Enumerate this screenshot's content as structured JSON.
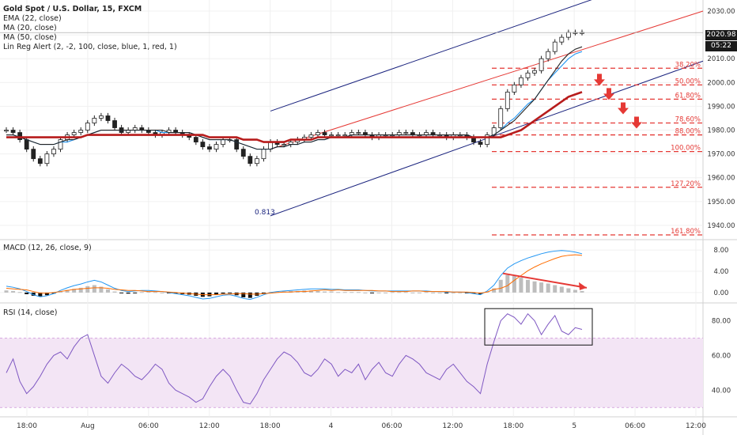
{
  "header": {
    "symbol_line": "Gold Spot / U.S. Dollar, 15, FXCM",
    "indicators": [
      "EMA (22, close)",
      "MA (20, close)",
      "MA (50, close)",
      "Lin Reg Alert (2, -2, 100, close, blue, 1, red, 1)"
    ]
  },
  "price_badge": {
    "price": "2020.98",
    "countdown": "05:22"
  },
  "panels": {
    "macd_title": "MACD (12, 26, close, 9)",
    "rsi_title": "RSI (14, close)"
  },
  "chart_data": [
    {
      "type": "line",
      "name": "price",
      "ylim": [
        1935,
        2032
      ],
      "y_ticks": [
        1940,
        1950,
        1960,
        1970,
        1980,
        1990,
        2000,
        2010,
        2020,
        2030
      ],
      "y_tick_labels": [
        "1940.00",
        "1950.00",
        "1960.00",
        "1970.00",
        "1980.00",
        "1990.00",
        "2000.00",
        "2010.00",
        "2020.00",
        "2030.00"
      ],
      "x_tick_labels": [
        "18:00",
        "Aug",
        "06:00",
        "12:00",
        "18:00",
        "4",
        "06:00",
        "12:00",
        "18:00",
        "5",
        "06:00",
        "12:00"
      ],
      "last_price": 2020.98,
      "regression_label": "0.813",
      "fib_levels": [
        {
          "label": "38.20%",
          "price": 2006
        },
        {
          "label": "50.00%",
          "price": 1999
        },
        {
          "label": "61.80%",
          "price": 1993
        },
        {
          "label": "78.60%",
          "price": 1983
        },
        {
          "label": "88.00%",
          "price": 1978
        },
        {
          "label": "100.00%",
          "price": 1971
        },
        {
          "label": "127.20%",
          "price": 1956
        },
        {
          "label": "161.80%",
          "price": 1936
        }
      ],
      "close_series": [
        1980,
        1979,
        1976,
        1972,
        1968,
        1966,
        1970,
        1972,
        1976,
        1978,
        1979,
        1980,
        1983,
        1985,
        1986,
        1984,
        1981,
        1979,
        1980,
        1981,
        1980,
        1979,
        1978,
        1979,
        1980,
        1979,
        1978,
        1977,
        1975,
        1973,
        1972,
        1974,
        1976,
        1976,
        1972,
        1969,
        1966,
        1968,
        1972,
        1975,
        1974,
        1974,
        1975,
        1976,
        1977,
        1978,
        1979,
        1978,
        1978,
        1978,
        1978,
        1979,
        1979,
        1978,
        1977,
        1978,
        1978,
        1978,
        1979,
        1979,
        1978,
        1978,
        1979,
        1978,
        1978,
        1977,
        1978,
        1978,
        1977,
        1975,
        1974,
        1978,
        1981,
        1989,
        1996,
        1999,
        2002,
        2004,
        2005,
        2010,
        2013,
        2017,
        2019,
        2021,
        2021,
        2021
      ],
      "series": [
        {
          "name": "EMA (22, close)",
          "color": "#2196f3",
          "values": [
            1978,
            1978,
            1977,
            1976,
            1975,
            1974,
            1974,
            1974,
            1975,
            1975,
            1976,
            1977,
            1978,
            1979,
            1980,
            1980,
            1980,
            1980,
            1980,
            1980,
            1980,
            1980,
            1980,
            1979,
            1979,
            1979,
            1979,
            1979,
            1978,
            1977,
            1976,
            1976,
            1976,
            1976,
            1975,
            1974,
            1973,
            1972,
            1972,
            1972,
            1973,
            1973,
            1974,
            1974,
            1975,
            1975,
            1976,
            1976,
            1977,
            1977,
            1977,
            1978,
            1978,
            1978,
            1978,
            1978,
            1978,
            1978,
            1978,
            1978,
            1978,
            1978,
            1978,
            1978,
            1978,
            1978,
            1978,
            1978,
            1978,
            1977,
            1977,
            1977,
            1978,
            1980,
            1983,
            1985,
            1988,
            1991,
            1993,
            1997,
            2001,
            2004,
            2007,
            2010,
            2012,
            2013
          ]
        },
        {
          "name": "MA (20, close)",
          "color": "#222222",
          "values": [
            1978,
            1978,
            1977,
            1976,
            1975,
            1974,
            1974,
            1974,
            1975,
            1976,
            1976,
            1977,
            1978,
            1979,
            1980,
            1980,
            1980,
            1980,
            1980,
            1980,
            1980,
            1980,
            1980,
            1980,
            1979,
            1979,
            1979,
            1979,
            1978,
            1977,
            1976,
            1976,
            1976,
            1976,
            1975,
            1974,
            1973,
            1972,
            1972,
            1972,
            1973,
            1973,
            1974,
            1974,
            1975,
            1975,
            1976,
            1976,
            1977,
            1977,
            1977,
            1978,
            1978,
            1978,
            1978,
            1978,
            1978,
            1978,
            1978,
            1978,
            1978,
            1978,
            1978,
            1978,
            1978,
            1978,
            1978,
            1978,
            1978,
            1977,
            1977,
            1977,
            1978,
            1980,
            1982,
            1984,
            1987,
            1990,
            1993,
            1997,
            2001,
            2005,
            2009,
            2012,
            2014,
            2015
          ]
        },
        {
          "name": "MA (50, close)",
          "color": "#b71c1c",
          "values": [
            1977,
            1977,
            1977,
            1977,
            1977,
            1977,
            1977,
            1977,
            1977,
            1977,
            1977,
            1977,
            1978,
            1978,
            1978,
            1978,
            1978,
            1978,
            1978,
            1978,
            1978,
            1978,
            1978,
            1978,
            1978,
            1978,
            1978,
            1978,
            1978,
            1978,
            1977,
            1977,
            1977,
            1977,
            1977,
            1976,
            1976,
            1976,
            1975,
            1975,
            1975,
            1975,
            1976,
            1976,
            1976,
            1976,
            1977,
            1977,
            1977,
            1977,
            1977,
            1977,
            1977,
            1977,
            1977,
            1977,
            1977,
            1977,
            1977,
            1977,
            1977,
            1977,
            1977,
            1977,
            1977,
            1977,
            1977,
            1977,
            1977,
            1977,
            1977,
            1977,
            1977,
            1977,
            1978,
            1979,
            1980,
            1982,
            1984,
            1986,
            1988,
            1990,
            1992,
            1994,
            1995,
            1996
          ]
        }
      ]
    },
    {
      "type": "bar",
      "name": "MACD",
      "y_ticks": [
        0,
        4,
        8
      ],
      "y_tick_labels": [
        "0.00",
        "4.00",
        "8.00"
      ],
      "ylim": [
        -1.5,
        9.5
      ],
      "histogram": [
        0.4,
        0.3,
        0.1,
        -0.3,
        -0.6,
        -0.7,
        -0.5,
        -0.2,
        0.2,
        0.5,
        0.7,
        0.9,
        1.2,
        1.4,
        1.1,
        0.6,
        0.2,
        -0.1,
        -0.2,
        -0.1,
        0.1,
        0.2,
        0.1,
        0.0,
        -0.1,
        -0.2,
        -0.3,
        -0.4,
        -0.6,
        -0.8,
        -0.7,
        -0.4,
        -0.2,
        -0.1,
        -0.5,
        -0.9,
        -1.0,
        -0.6,
        -0.2,
        0.1,
        0.2,
        0.2,
        0.3,
        0.3,
        0.4,
        0.4,
        0.3,
        0.2,
        0.2,
        0.1,
        0.1,
        0.1,
        0.1,
        0.0,
        -0.1,
        0.0,
        0.0,
        0.1,
        0.1,
        0.1,
        0.0,
        0.0,
        0.1,
        0.0,
        0.0,
        -0.1,
        0.0,
        0.0,
        -0.1,
        -0.2,
        -0.3,
        0.2,
        0.8,
        2.4,
        3.3,
        3.1,
        2.8,
        2.4,
        2.1,
        1.9,
        1.7,
        1.4,
        1.1,
        0.8,
        0.5,
        0.3
      ],
      "series": [
        {
          "name": "MACD",
          "color": "#2196f3",
          "values": [
            1.2,
            1.0,
            0.7,
            0.2,
            -0.4,
            -0.8,
            -0.6,
            -0.2,
            0.4,
            0.9,
            1.3,
            1.6,
            2.0,
            2.3,
            2.0,
            1.4,
            0.8,
            0.4,
            0.2,
            0.3,
            0.4,
            0.4,
            0.3,
            0.2,
            0.0,
            -0.2,
            -0.4,
            -0.6,
            -0.9,
            -1.2,
            -1.1,
            -0.8,
            -0.5,
            -0.4,
            -0.7,
            -1.1,
            -1.3,
            -0.9,
            -0.4,
            0.0,
            0.2,
            0.3,
            0.4,
            0.5,
            0.6,
            0.7,
            0.7,
            0.7,
            0.6,
            0.6,
            0.5,
            0.5,
            0.5,
            0.4,
            0.3,
            0.3,
            0.3,
            0.3,
            0.3,
            0.3,
            0.3,
            0.3,
            0.3,
            0.2,
            0.2,
            0.1,
            0.1,
            0.1,
            0.0,
            -0.2,
            -0.4,
            0.3,
            1.4,
            3.2,
            4.6,
            5.4,
            6.0,
            6.5,
            6.9,
            7.3,
            7.6,
            7.8,
            7.9,
            7.8,
            7.6,
            7.3
          ]
        },
        {
          "name": "Signal",
          "color": "#ff6d00",
          "values": [
            0.8,
            0.7,
            0.6,
            0.5,
            0.2,
            -0.1,
            -0.1,
            0.0,
            0.2,
            0.4,
            0.6,
            0.7,
            0.8,
            0.9,
            0.9,
            0.8,
            0.6,
            0.5,
            0.4,
            0.4,
            0.3,
            0.2,
            0.2,
            0.2,
            0.1,
            0.0,
            -0.1,
            -0.2,
            -0.3,
            -0.4,
            -0.4,
            -0.4,
            -0.3,
            -0.3,
            -0.2,
            -0.2,
            -0.3,
            -0.3,
            -0.2,
            -0.1,
            0.0,
            0.1,
            0.1,
            0.2,
            0.2,
            0.3,
            0.4,
            0.5,
            0.4,
            0.5,
            0.4,
            0.4,
            0.4,
            0.4,
            0.4,
            0.3,
            0.3,
            0.2,
            0.2,
            0.2,
            0.3,
            0.3,
            0.2,
            0.2,
            0.2,
            0.2,
            0.1,
            0.1,
            0.1,
            0.0,
            -0.1,
            0.1,
            0.6,
            0.8,
            1.3,
            2.3,
            3.2,
            4.1,
            4.8,
            5.4,
            5.9,
            6.4,
            6.8,
            7.0,
            7.1,
            7.0
          ]
        }
      ]
    },
    {
      "type": "line",
      "name": "RSI",
      "y_ticks": [
        40,
        60,
        80
      ],
      "y_tick_labels": [
        "40.00",
        "60.00",
        "80.00"
      ],
      "ylim": [
        26,
        88
      ],
      "band": [
        30,
        70
      ],
      "series": [
        {
          "name": "RSI",
          "color": "#7e57c2",
          "values": [
            50,
            58,
            45,
            38,
            42,
            48,
            55,
            60,
            62,
            58,
            65,
            70,
            72,
            60,
            48,
            44,
            50,
            55,
            52,
            48,
            46,
            50,
            55,
            52,
            44,
            40,
            38,
            36,
            33,
            35,
            42,
            48,
            52,
            48,
            40,
            33,
            32,
            38,
            46,
            52,
            58,
            62,
            60,
            56,
            50,
            48,
            52,
            58,
            55,
            48,
            52,
            50,
            55,
            46,
            52,
            56,
            50,
            48,
            55,
            60,
            58,
            55,
            50,
            48,
            46,
            52,
            55,
            50,
            45,
            42,
            38,
            55,
            68,
            80,
            84,
            82,
            78,
            84,
            80,
            72,
            78,
            83,
            74,
            72,
            76,
            75
          ]
        }
      ]
    }
  ]
}
